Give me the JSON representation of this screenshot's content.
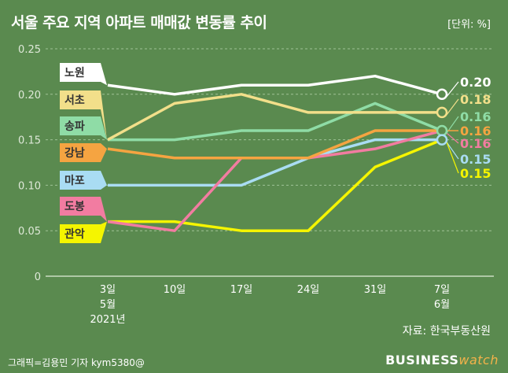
{
  "header": {
    "title": "서울 주요 지역 아파트 매매값 변동률 추이",
    "unit": "[단위: %]"
  },
  "footer": {
    "source": "자료: 한국부동산원",
    "credit": "그래픽=김용민 기자 kym5380@",
    "brand_main": "BUSINESS",
    "brand_sub": "watch"
  },
  "chart_data": {
    "type": "line",
    "title": "서울 주요 지역 아파트 매매값 변동률 추이",
    "xlabel": "",
    "ylabel": "",
    "unit": "%",
    "ylim": [
      0,
      0.25
    ],
    "yticks": [
      "0",
      "0.05",
      "0.10",
      "0.15",
      "0.20",
      "0.25"
    ],
    "grid": true,
    "categories": [
      [
        "3일",
        "5월",
        "2021년"
      ],
      [
        "10일"
      ],
      [
        "17일"
      ],
      [
        "24일"
      ],
      [
        "31일"
      ],
      [
        "7일",
        "6월"
      ]
    ],
    "series": [
      {
        "name": "노원",
        "color": "#ffffff",
        "text_color": "#333333",
        "values": [
          0.21,
          0.2,
          0.21,
          0.21,
          0.22,
          0.2
        ],
        "end_label": "0.20"
      },
      {
        "name": "서초",
        "color": "#f2df8a",
        "text_color": "#333333",
        "values": [
          0.15,
          0.19,
          0.2,
          0.18,
          0.18,
          0.18
        ],
        "end_label": "0.18"
      },
      {
        "name": "송파",
        "color": "#8fdca6",
        "text_color": "#333333",
        "values": [
          0.15,
          0.15,
          0.16,
          0.16,
          0.19,
          0.16
        ],
        "end_label": "0.16"
      },
      {
        "name": "강남",
        "color": "#f5a441",
        "text_color": "#333333",
        "values": [
          0.14,
          0.13,
          0.13,
          0.13,
          0.16,
          0.16
        ],
        "end_label": "0.16"
      },
      {
        "name": "도봉",
        "color": "#f27ca1",
        "text_color": "#333333",
        "values": [
          0.06,
          0.05,
          0.13,
          0.13,
          0.14,
          0.16
        ],
        "end_label": "0.16"
      },
      {
        "name": "마포",
        "color": "#a9dcf3",
        "text_color": "#333333",
        "values": [
          0.1,
          0.1,
          0.1,
          0.13,
          0.15,
          0.15
        ],
        "end_label": "0.15"
      },
      {
        "name": "관악",
        "color": "#f5f500",
        "text_color": "#333333",
        "values": [
          0.06,
          0.06,
          0.05,
          0.05,
          0.12,
          0.15
        ],
        "end_label": "0.15"
      }
    ],
    "label_order": [
      "노원",
      "서초",
      "송파",
      "강남",
      "마포",
      "도봉",
      "관악"
    ]
  }
}
